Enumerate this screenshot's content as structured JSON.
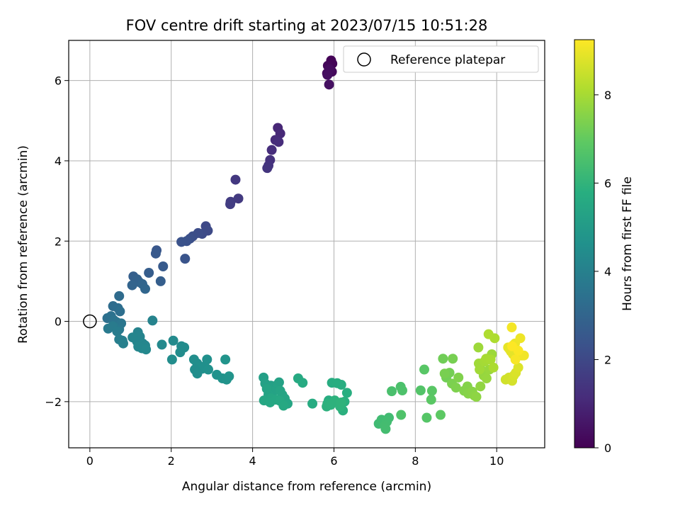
{
  "chart_data": {
    "type": "scatter",
    "title": "FOV centre drift starting at 2023/07/15 10:51:28",
    "xlabel": "Angular distance from reference (arcmin)",
    "ylabel": "Rotation from reference (arcmin)",
    "xlim": [
      -0.52,
      11.18
    ],
    "ylim": [
      -3.15,
      7.0
    ],
    "xticks": [
      0,
      2,
      4,
      6,
      8,
      10
    ],
    "xtick_labels": [
      "0",
      "2",
      "4",
      "6",
      "8",
      "10"
    ],
    "yticks": [
      -2,
      0,
      2,
      4,
      6
    ],
    "ytick_labels": [
      "−2",
      "0",
      "2",
      "4",
      "6"
    ],
    "grid": true,
    "legend": {
      "location": "upper right",
      "entries": [
        {
          "label": "Reference platepar",
          "marker": "open-circle"
        }
      ]
    },
    "colorbar": {
      "label": "Hours from first FF file",
      "colormap": "viridis",
      "range": [
        0,
        9.25
      ],
      "ticks": [
        0,
        2,
        4,
        6,
        8
      ],
      "tick_labels": [
        "0",
        "2",
        "4",
        "6",
        "8"
      ]
    },
    "reference_point": {
      "x": 0,
      "y": 0
    },
    "series": [
      {
        "x": [
          5.93,
          5.96,
          5.85,
          5.95,
          5.83,
          5.89,
          5.84,
          5.88
        ],
        "y": [
          6.5,
          6.42,
          6.37,
          6.22,
          6.18,
          6.28,
          6.14,
          5.9
        ],
        "c": [
          0.05,
          0.1,
          0.15,
          0.2,
          0.25,
          0.3,
          0.35,
          0.4
        ]
      },
      {
        "x": [
          4.62,
          4.68,
          4.56,
          4.64,
          4.47,
          4.43,
          4.39,
          4.36,
          3.58,
          3.65,
          3.46,
          3.45
        ],
        "y": [
          4.82,
          4.68,
          4.52,
          4.47,
          4.27,
          4.02,
          3.88,
          3.82,
          3.53,
          3.06,
          2.98,
          2.92
        ],
        "c": [
          1.0,
          1.05,
          1.1,
          1.15,
          1.2,
          1.3,
          1.35,
          1.4,
          1.5,
          1.55,
          1.6,
          1.65
        ]
      },
      {
        "x": [
          2.85,
          2.9,
          2.76,
          2.66,
          2.53,
          2.46,
          2.38,
          2.25,
          2.34,
          1.64,
          1.62,
          1.8,
          1.45,
          1.74,
          1.07,
          1.16,
          1.21,
          1.04,
          1.29,
          1.36
        ],
        "y": [
          2.37,
          2.26,
          2.18,
          2.2,
          2.12,
          2.06,
          2.0,
          1.98,
          1.56,
          1.77,
          1.69,
          1.37,
          1.21,
          1.0,
          1.12,
          1.05,
          0.98,
          0.9,
          0.93,
          0.81
        ],
        "c": [
          2.0,
          2.05,
          2.1,
          2.15,
          2.2,
          2.25,
          2.3,
          2.35,
          2.4,
          2.5,
          2.55,
          2.6,
          2.7,
          2.75,
          2.8,
          2.85,
          2.9,
          2.95,
          3.0,
          3.05
        ]
      },
      {
        "x": [
          0.72,
          0.57,
          0.69,
          0.74,
          0.43,
          0.52,
          0.59,
          0.66,
          0.77,
          0.62,
          0.72,
          0.45,
          0.56,
          0.67,
          0.72,
          0.8,
          0.82
        ],
        "y": [
          0.63,
          0.38,
          0.33,
          0.25,
          0.08,
          0.13,
          0.03,
          -0.02,
          -0.05,
          -0.15,
          -0.2,
          -0.18,
          -0.12,
          -0.25,
          -0.45,
          -0.48,
          -0.55
        ],
        "c": [
          3.2,
          3.25,
          3.3,
          3.35,
          3.4,
          3.45,
          3.5,
          3.55,
          3.6,
          3.65,
          3.7,
          3.75,
          3.8,
          3.85,
          3.9,
          3.95,
          4.0
        ]
      },
      {
        "x": [
          1.54,
          1.18,
          1.23,
          1.05,
          1.16,
          1.3,
          1.36,
          1.19,
          1.28,
          1.38,
          1.77,
          2.05,
          2.25,
          2.32,
          2.22,
          2.02,
          2.56,
          2.64,
          2.7,
          2.82,
          2.88,
          2.76,
          2.91,
          3.12,
          3.26,
          3.36,
          3.33,
          3.42
        ],
        "y": [
          0.02,
          -0.27,
          -0.38,
          -0.4,
          -0.5,
          -0.55,
          -0.6,
          -0.63,
          -0.67,
          -0.7,
          -0.58,
          -0.48,
          -0.62,
          -0.65,
          -0.77,
          -0.95,
          -0.95,
          -1.05,
          -1.14,
          -1.12,
          -0.95,
          -1.18,
          -1.2,
          -1.33,
          -1.42,
          -1.45,
          -0.95,
          -1.37
        ],
        "c": [
          4.1,
          4.12,
          4.14,
          4.16,
          4.18,
          4.2,
          4.22,
          4.24,
          4.26,
          4.28,
          4.32,
          4.36,
          4.4,
          4.42,
          4.44,
          4.46,
          4.5,
          4.52,
          4.54,
          4.56,
          4.58,
          4.6,
          4.62,
          4.66,
          4.7,
          4.72,
          4.74,
          4.76
        ]
      },
      {
        "x": [
          2.58,
          2.64
        ],
        "y": [
          -1.2,
          -1.3
        ],
        "c": [
          4.48,
          4.5
        ]
      },
      {
        "x": [
          4.27,
          4.31,
          4.45,
          4.65,
          4.61,
          4.58,
          4.5,
          4.39,
          4.35,
          4.68,
          4.73,
          4.79,
          4.86,
          4.45,
          4.28,
          4.43,
          4.57,
          4.67,
          4.76,
          5.12,
          5.23,
          5.47,
          5.87,
          5.95,
          6.08,
          6.18,
          6.32,
          6.26,
          6.22,
          5.84,
          5.82,
          5.92,
          6.02,
          6.15,
          6.18
        ],
        "y": [
          -1.4,
          -1.55,
          -1.6,
          -1.52,
          -1.58,
          -1.7,
          -1.75,
          -1.82,
          -1.68,
          -1.73,
          -1.83,
          -1.92,
          -2.05,
          -1.92,
          -1.97,
          -2.02,
          -1.95,
          -1.98,
          -2.1,
          -1.42,
          -1.53,
          -2.05,
          -1.97,
          -1.53,
          -1.54,
          -1.58,
          -1.78,
          -2.0,
          -2.22,
          -2.05,
          -2.12,
          -2.08,
          -1.97,
          -2.12,
          -2.02
        ],
        "c": [
          5.2,
          5.22,
          5.24,
          5.26,
          5.28,
          5.3,
          5.32,
          5.34,
          5.36,
          5.38,
          5.4,
          5.42,
          5.44,
          5.46,
          5.48,
          5.5,
          5.52,
          5.54,
          5.56,
          5.6,
          5.62,
          5.66,
          5.7,
          5.72,
          5.74,
          5.76,
          5.8,
          5.82,
          5.84,
          5.86,
          5.88,
          5.9,
          5.92,
          5.94,
          5.96
        ]
      },
      {
        "x": [
          7.1,
          7.17,
          7.35,
          7.3,
          7.25,
          7.42,
          7.27,
          7.64,
          7.68,
          7.65,
          8.13,
          8.28,
          8.22,
          8.41,
          8.39,
          8.62
        ],
        "y": [
          -2.55,
          -2.45,
          -2.4,
          -2.5,
          -2.6,
          -1.74,
          -2.68,
          -1.63,
          -1.72,
          -2.33,
          -1.72,
          -2.4,
          -1.2,
          -1.73,
          -1.95,
          -2.33
        ],
        "c": [
          6.3,
          6.32,
          6.34,
          6.36,
          6.38,
          6.5,
          6.4,
          6.55,
          6.6,
          6.62,
          6.7,
          6.75,
          6.8,
          6.82,
          6.85,
          6.9
        ]
      },
      {
        "x": [
          8.68,
          8.76,
          8.84,
          8.92,
          8.72,
          8.9,
          9.0,
          9.06,
          9.2,
          9.28,
          9.3,
          9.4,
          9.45,
          9.5,
          9.6,
          9.63,
          9.68,
          9.75,
          9.82,
          9.88,
          9.55,
          9.56,
          9.58,
          9.7,
          9.74,
          9.85,
          9.92,
          9.95,
          9.8
        ],
        "y": [
          -0.93,
          -1.4,
          -1.28,
          -0.93,
          -1.3,
          -1.55,
          -1.65,
          -1.4,
          -1.73,
          -1.62,
          -1.8,
          -1.75,
          -1.85,
          -1.88,
          -1.62,
          -1.22,
          -1.35,
          -1.42,
          -1.2,
          -0.82,
          -0.65,
          -1.05,
          -1.2,
          -1.0,
          -0.93,
          -0.95,
          -1.15,
          -0.42,
          -0.32
        ],
        "c": [
          7.2,
          7.22,
          7.26,
          7.3,
          7.32,
          7.36,
          7.4,
          7.44,
          7.48,
          7.5,
          7.52,
          7.56,
          7.6,
          7.64,
          7.68,
          7.72,
          7.74,
          7.78,
          7.8,
          7.84,
          7.86,
          7.9,
          7.92,
          7.96,
          8.0,
          8.02,
          8.06,
          8.1,
          8.12
        ]
      },
      {
        "x": [
          10.22,
          10.3,
          10.38,
          10.42,
          10.47,
          10.53,
          10.62,
          10.32,
          10.4,
          10.35,
          10.28,
          10.4,
          10.45,
          10.58,
          10.67,
          10.37,
          10.46,
          10.53,
          10.38
        ],
        "y": [
          -1.45,
          -1.4,
          -1.48,
          -1.35,
          -1.28,
          -1.15,
          -0.85,
          -0.7,
          -0.82,
          -0.75,
          -0.65,
          -0.6,
          -0.55,
          -0.42,
          -0.85,
          -0.15,
          -0.95,
          -0.73,
          -0.62
        ],
        "c": [
          8.6,
          8.62,
          8.66,
          8.7,
          8.74,
          8.78,
          8.82,
          8.84,
          8.88,
          8.9,
          8.92,
          8.96,
          9.0,
          9.04,
          9.08,
          9.12,
          9.16,
          9.2,
          9.24
        ]
      }
    ]
  }
}
